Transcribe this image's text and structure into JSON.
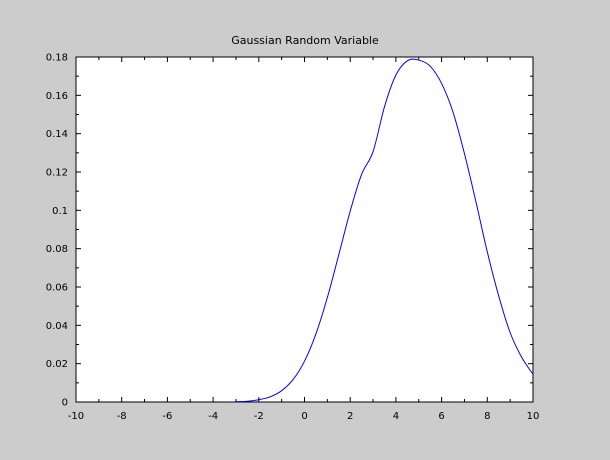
{
  "chart_data": {
    "type": "line",
    "title": "Gaussian Random Variable",
    "xlabel": "",
    "ylabel": "",
    "xlim": [
      -10,
      10
    ],
    "ylim": [
      0,
      0.18
    ],
    "xticks": [
      -10,
      -8,
      -6,
      -4,
      -2,
      0,
      2,
      4,
      6,
      8,
      10
    ],
    "yticks": [
      0,
      0.02,
      0.04,
      0.06,
      0.08,
      0.1,
      0.12,
      0.14,
      0.16,
      0.18
    ],
    "xtick_labels": [
      "-10",
      "-8",
      "-6",
      "-4",
      "-2",
      "0",
      "2",
      "4",
      "6",
      "8",
      "10"
    ],
    "ytick_labels": [
      "0",
      "0.02",
      "0.04",
      "0.06",
      "0.08",
      "0.1",
      "0.12",
      "0.14",
      "0.16",
      "0.18"
    ],
    "grid": false,
    "series": [
      {
        "color": "#0000ff",
        "x": [
          -3,
          -2.5,
          -2,
          -1.5,
          -1,
          -0.5,
          0,
          0.5,
          1,
          1.5,
          2,
          2.5,
          3,
          3.5,
          4,
          4.5,
          5,
          5.5,
          6,
          6.5,
          7,
          7.5,
          8,
          8.5,
          9,
          9.5,
          10
        ],
        "y": [
          0.0002,
          0.0004,
          0.0012,
          0.0027,
          0.0059,
          0.0117,
          0.0213,
          0.0355,
          0.0545,
          0.0768,
          0.0996,
          0.1188,
          0.1306,
          0.154,
          0.1706,
          0.178,
          0.1784,
          0.1752,
          0.1662,
          0.1512,
          0.1296,
          0.1046,
          0.0783,
          0.0553,
          0.0362,
          0.0234,
          0.0145
        ]
      }
    ]
  }
}
